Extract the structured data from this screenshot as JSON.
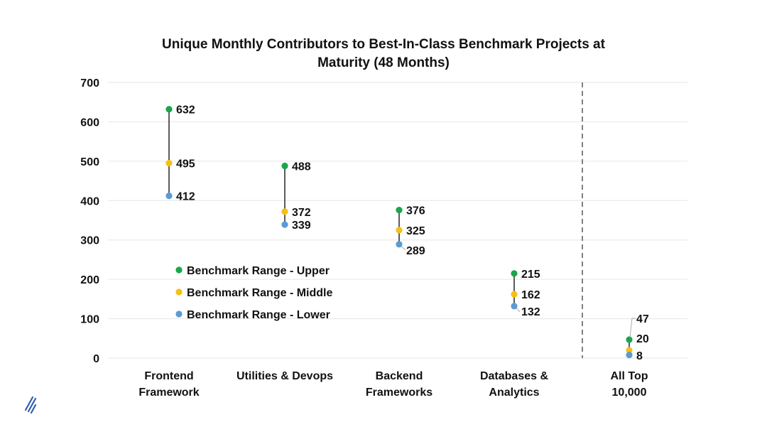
{
  "chart_data": {
    "type": "scatter",
    "title": "Unique Monthly Contributors to Best-In-Class Benchmark Projects at Maturity (48 Months)",
    "title_lines": [
      "Unique Monthly Contributors to Best-In-Class Benchmark Projects at",
      "Maturity (48 Months)"
    ],
    "xlabel": "",
    "ylabel": "",
    "ylim": [
      0,
      700
    ],
    "yticks": [
      "700",
      "600",
      "500",
      "400",
      "300",
      "200",
      "100",
      "0"
    ],
    "grid": true,
    "legend_position": "middle-left",
    "categories": [
      [
        "Frontend",
        "Framework"
      ],
      [
        "Utilities & Devops"
      ],
      [
        "Backend",
        "Frameworks"
      ],
      [
        "Databases &",
        "Analytics"
      ],
      [
        "All Top",
        "10,000"
      ]
    ],
    "series": [
      {
        "name": "Benchmark Range - Upper",
        "color": "#1aa64a",
        "values": [
          632,
          488,
          376,
          215,
          47
        ]
      },
      {
        "name": "Benchmark Range - Middle",
        "color": "#f5c016",
        "values": [
          495,
          372,
          325,
          162,
          20
        ]
      },
      {
        "name": "Benchmark Range - Lower",
        "color": "#5b9bd5",
        "values": [
          412,
          339,
          289,
          132,
          8
        ]
      }
    ],
    "data_labels": [
      {
        "upper": "632",
        "middle": "495",
        "lower": "412"
      },
      {
        "upper": "488",
        "middle": "372",
        "lower": "339"
      },
      {
        "upper": "376",
        "middle": "325",
        "lower": "289"
      },
      {
        "upper": "215",
        "middle": "162",
        "lower": "132"
      },
      {
        "upper": "47",
        "middle": "20",
        "lower": "8"
      }
    ],
    "divider": "dashed vertical line before last category"
  },
  "logo": {
    "name": "slash-logo-icon",
    "color": "#2f5fb3"
  }
}
